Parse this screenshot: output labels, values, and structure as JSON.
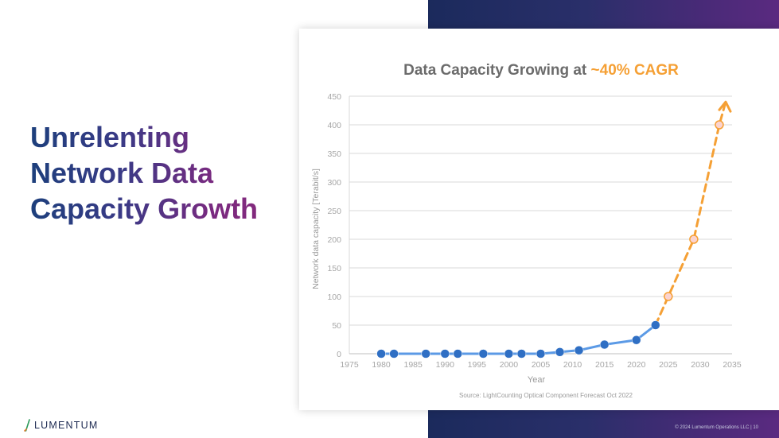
{
  "slide": {
    "headline": [
      "Unrelenting",
      "Network Data",
      "Capacity Growth"
    ],
    "logo_text": "LUMENTUM",
    "footer": "© 2024 Lumentum Operations LLC  |  10"
  },
  "chart_data": {
    "type": "line",
    "title": "Data Capacity Growing at ",
    "title_highlight": "~40% CAGR",
    "title_highlight_color": "#f5a035",
    "xlabel": "Year",
    "ylabel": "Network data capacity [Terabit/s]",
    "source": "Source: LightCounting Optical Component Forecast Oct 2022",
    "xlim": [
      1975,
      2035
    ],
    "ylim": [
      0,
      450
    ],
    "x_ticks": [
      "1975",
      "1980",
      "1985",
      "1990",
      "1995",
      "2000",
      "2005",
      "2010",
      "2015",
      "2020",
      "2025",
      "2030",
      "2035"
    ],
    "y_ticks": [
      "0",
      "50",
      "100",
      "150",
      "200",
      "250",
      "300",
      "350",
      "400",
      "450"
    ],
    "grid": "horizontal",
    "series": [
      {
        "color": "#2f6fc4",
        "line_color": "#5b9ae6",
        "style": "solid",
        "points": [
          {
            "x": 1980,
            "y": 0
          },
          {
            "x": 1982,
            "y": 0
          },
          {
            "x": 1987,
            "y": 0
          },
          {
            "x": 1990,
            "y": 0
          },
          {
            "x": 1992,
            "y": 0
          },
          {
            "x": 1996,
            "y": 0
          },
          {
            "x": 2000,
            "y": 0
          },
          {
            "x": 2002,
            "y": 0
          },
          {
            "x": 2005,
            "y": 0
          },
          {
            "x": 2008,
            "y": 3
          },
          {
            "x": 2011,
            "y": 6
          },
          {
            "x": 2015,
            "y": 16
          },
          {
            "x": 2020,
            "y": 24
          },
          {
            "x": 2023,
            "y": 50
          }
        ]
      },
      {
        "color": "#f5a035",
        "style": "dashed",
        "points": [
          {
            "x": 2023,
            "y": 50
          },
          {
            "x": 2025,
            "y": 100
          },
          {
            "x": 2029,
            "y": 200
          },
          {
            "x": 2033,
            "y": 400
          },
          {
            "x": 2034,
            "y": 440
          }
        ],
        "marker_points": [
          {
            "x": 2025,
            "y": 100
          },
          {
            "x": 2029,
            "y": 200
          },
          {
            "x": 2033,
            "y": 400
          }
        ]
      }
    ]
  }
}
